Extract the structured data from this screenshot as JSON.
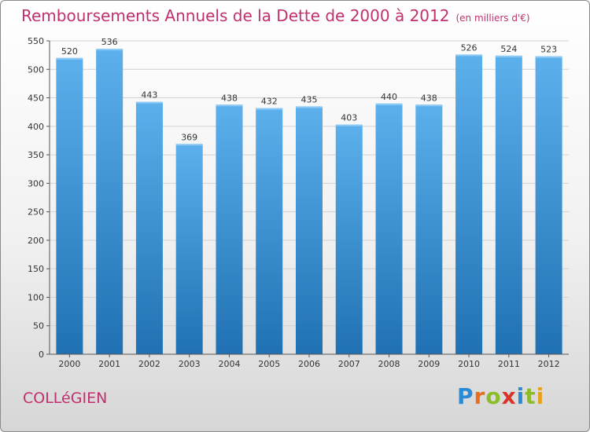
{
  "header": {
    "title": "Remboursements Annuels de la Dette de 2000 à 2012",
    "unit": "(en milliers d'€)"
  },
  "footer": {
    "city": "COLLéGIEN",
    "logo": {
      "p": "P",
      "r": "r",
      "o": "o",
      "x": "x",
      "i1": "i",
      "t": "t",
      "i2": "i"
    }
  },
  "colors": {
    "bar": "#3f97db",
    "bar_light": "#5aaeea",
    "bar_dark": "#1e6fb0",
    "title": "#c0306e",
    "grid": "#d2d2d2"
  },
  "chart_data": {
    "type": "bar",
    "title": "Remboursements Annuels de la Dette de 2000 à 2012",
    "ylabel": "en milliers d'€",
    "xlabel": "",
    "categories": [
      "2000",
      "2001",
      "2002",
      "2003",
      "2004",
      "2005",
      "2006",
      "2007",
      "2008",
      "2009",
      "2010",
      "2011",
      "2012"
    ],
    "values": [
      520,
      536,
      443,
      369,
      438,
      432,
      435,
      403,
      440,
      438,
      526,
      524,
      523
    ],
    "ylim": [
      0,
      550
    ],
    "yticks": [
      0,
      50,
      100,
      150,
      200,
      250,
      300,
      350,
      400,
      450,
      500,
      550
    ],
    "grid": true
  }
}
